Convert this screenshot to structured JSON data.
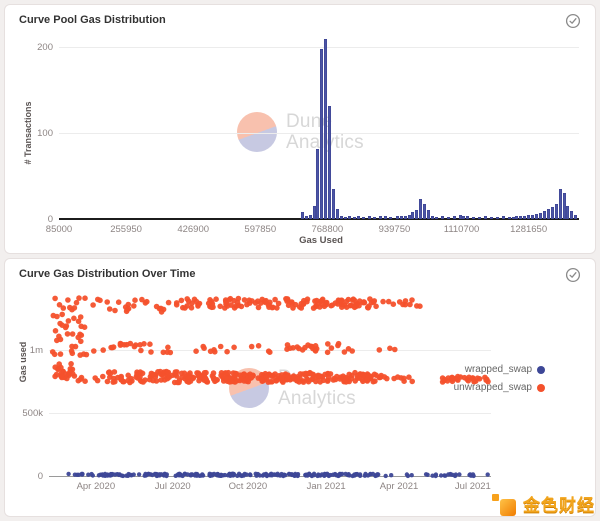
{
  "watermark": {
    "line1": "Dune",
    "line2": "Analytics"
  },
  "brand_badge": {
    "text": "金色财经",
    "icon": "jinse-pixel-logo"
  },
  "cards": [
    {
      "status_icon": "check-circle"
    },
    {
      "status_icon": "check-circle"
    }
  ],
  "colors": {
    "bar": "#4C55A5",
    "bar_border": "#394090",
    "wrapped_swap": "#3D4797",
    "unwrapped_swap": "#F4512C",
    "grid": "#ececec",
    "axis": "#1c1c1c",
    "tick_text": "#8d8584",
    "card_bg": "#ffffff",
    "page_bg": "#f2efee"
  },
  "chart_data": [
    {
      "type": "bar",
      "title": "Curve Pool Gas Distribution",
      "xlabel": "Gas Used",
      "ylabel": "# Transactions",
      "xlim": [
        85000,
        1410000
      ],
      "ylim": [
        0,
        215
      ],
      "grid": "horizontal",
      "x_ticks": [
        {
          "label": "85000",
          "v": 85000
        },
        {
          "label": "255950",
          "v": 255950
        },
        {
          "label": "426900",
          "v": 426900
        },
        {
          "label": "597850",
          "v": 597850
        },
        {
          "label": "768800",
          "v": 768800
        },
        {
          "label": "939750",
          "v": 939750
        },
        {
          "label": "1110700",
          "v": 1110700
        },
        {
          "label": "1281650",
          "v": 1281650
        }
      ],
      "y_ticks": [
        {
          "label": "0",
          "v": 0
        },
        {
          "label": "100",
          "v": 100
        },
        {
          "label": "200",
          "v": 200
        }
      ],
      "bin_width": 10000,
      "bins": [
        [
          706000,
          8
        ],
        [
          716000,
          4
        ],
        [
          726000,
          5
        ],
        [
          736000,
          15
        ],
        [
          746000,
          82
        ],
        [
          756000,
          198
        ],
        [
          766000,
          209
        ],
        [
          776000,
          131
        ],
        [
          786000,
          35
        ],
        [
          796000,
          12
        ],
        [
          806000,
          4
        ],
        [
          816000,
          2
        ],
        [
          826000,
          3
        ],
        [
          838000,
          2
        ],
        [
          850000,
          3
        ],
        [
          862000,
          2
        ],
        [
          876000,
          3
        ],
        [
          890000,
          2
        ],
        [
          904000,
          4
        ],
        [
          918000,
          3
        ],
        [
          932000,
          2
        ],
        [
          948000,
          3
        ],
        [
          958000,
          4
        ],
        [
          968000,
          3
        ],
        [
          978000,
          5
        ],
        [
          988000,
          8
        ],
        [
          998000,
          10
        ],
        [
          1008000,
          23
        ],
        [
          1018000,
          17
        ],
        [
          1028000,
          10
        ],
        [
          1038000,
          4
        ],
        [
          1048000,
          2
        ],
        [
          1063000,
          3
        ],
        [
          1078000,
          2
        ],
        [
          1093000,
          4
        ],
        [
          1108000,
          5
        ],
        [
          1118000,
          4
        ],
        [
          1128000,
          3
        ],
        [
          1143000,
          2
        ],
        [
          1158000,
          2
        ],
        [
          1173000,
          3
        ],
        [
          1188000,
          2
        ],
        [
          1203000,
          2
        ],
        [
          1218000,
          3
        ],
        [
          1233000,
          2
        ],
        [
          1243000,
          2
        ],
        [
          1253000,
          3
        ],
        [
          1263000,
          3
        ],
        [
          1273000,
          4
        ],
        [
          1283000,
          5
        ],
        [
          1293000,
          5
        ],
        [
          1303000,
          6
        ],
        [
          1313000,
          7
        ],
        [
          1323000,
          9
        ],
        [
          1333000,
          12
        ],
        [
          1343000,
          14
        ],
        [
          1353000,
          18
        ],
        [
          1363000,
          35
        ],
        [
          1373000,
          30
        ],
        [
          1383000,
          15
        ],
        [
          1393000,
          9
        ],
        [
          1403000,
          5
        ]
      ]
    },
    {
      "type": "scatter",
      "title": "Curve Gas Distribution Over Time",
      "xlabel": "",
      "ylabel": "Gas used",
      "ylim": [
        0,
        1500000
      ],
      "grid": "horizontal",
      "legend_position": "right",
      "x_ticks": [
        {
          "label": "Apr 2020",
          "f": 0.106
        },
        {
          "label": "Jul 2020",
          "f": 0.28
        },
        {
          "label": "Oct 2020",
          "f": 0.45
        },
        {
          "label": "Jan 2021",
          "f": 0.627
        },
        {
          "label": "Apr 2021",
          "f": 0.792
        },
        {
          "label": "Jul 2021",
          "f": 0.959
        }
      ],
      "y_ticks": [
        {
          "label": "0",
          "v": 0
        },
        {
          "label": "500k",
          "v": 500000
        },
        {
          "label": "1m",
          "v": 1000000
        }
      ],
      "series": [
        {
          "name": "wrapped_swap",
          "color": "#3D4797",
          "point_radius": 2.2,
          "bands": [
            {
              "x": [
                0.04,
                0.745
              ],
              "gas": [
                0,
                18000
              ],
              "n": 230
            },
            {
              "x": [
                0.75,
                0.995
              ],
              "gas": [
                0,
                15000
              ],
              "n": 26
            }
          ]
        },
        {
          "name": "unwrapped_swap",
          "color": "#F4512C",
          "point_radius": 2.8,
          "bands": [
            {
              "x": [
                0.003,
                0.085
              ],
              "gas": [
                730000,
                1450000
              ],
              "n": 58
            },
            {
              "x": [
                0.012,
                0.06
              ],
              "gas": [
                780000,
                900000
              ],
              "n": 14
            },
            {
              "x": [
                0.09,
                0.3
              ],
              "gas": [
                1300000,
                1420000
              ],
              "n": 26
            },
            {
              "x": [
                0.3,
                0.74
              ],
              "gas": [
                1330000,
                1410000
              ],
              "n": 130
            },
            {
              "x": [
                0.74,
                0.84
              ],
              "gas": [
                1340000,
                1400000
              ],
              "n": 12
            },
            {
              "x": [
                0.14,
                0.21
              ],
              "gas": [
                990000,
                1060000
              ],
              "n": 12
            },
            {
              "x": [
                0.1,
                0.32
              ],
              "gas": [
                980000,
                1050000
              ],
              "n": 10
            },
            {
              "x": [
                0.32,
                0.8
              ],
              "gas": [
                980000,
                1050000
              ],
              "n": 40
            },
            {
              "x": [
                0.1,
                0.3
              ],
              "gas": [
                740000,
                830000
              ],
              "n": 70
            },
            {
              "x": [
                0.3,
                0.75
              ],
              "gas": [
                745000,
                820000
              ],
              "n": 240
            },
            {
              "x": [
                0.75,
                0.83
              ],
              "gas": [
                750000,
                800000
              ],
              "n": 10
            },
            {
              "x": [
                0.89,
                0.995
              ],
              "gas": [
                745000,
                790000
              ],
              "n": 32
            }
          ]
        }
      ]
    }
  ]
}
